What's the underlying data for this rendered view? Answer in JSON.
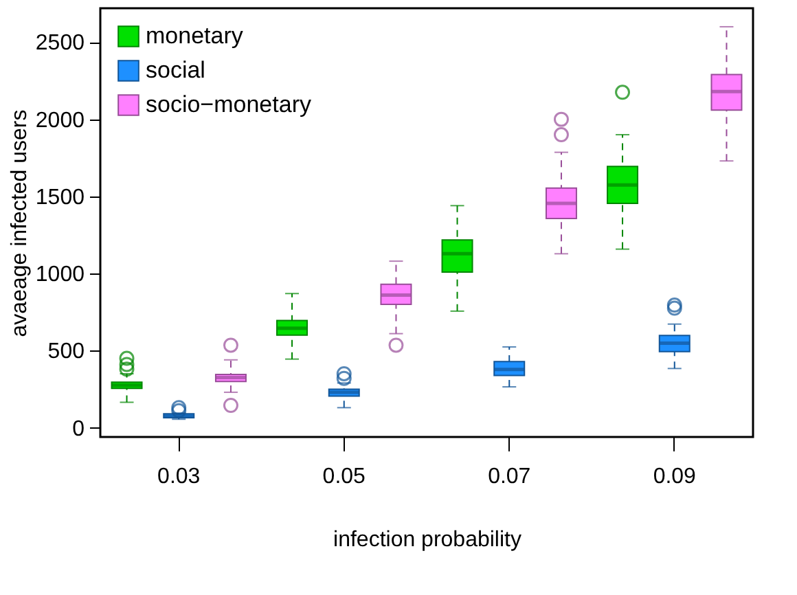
{
  "chart_data": {
    "type": "box",
    "xlabel": "infection probability",
    "ylabel": "avaeage infected users",
    "categories": [
      "0.03",
      "0.05",
      "0.07",
      "0.09"
    ],
    "ylim": [
      -60,
      2720
    ],
    "yticks": [
      0,
      500,
      1000,
      1500,
      2000,
      2500
    ],
    "grid": false,
    "legend": "top left",
    "series": [
      {
        "name": "monetary",
        "color": "#00e000",
        "boxes": [
          {
            "low": 165,
            "q1": 255,
            "median": 275,
            "q3": 295,
            "high": 350,
            "outliers": [
              380,
              410,
              450
            ]
          },
          {
            "low": 445,
            "q1": 600,
            "median": 645,
            "q3": 695,
            "high": 870
          },
          {
            "low": 756,
            "q1": 1009,
            "median": 1128,
            "q3": 1217,
            "high": 1440
          },
          {
            "low": 1158,
            "q1": 1455,
            "median": 1574,
            "q3": 1694,
            "high": 1900,
            "outliers": [
              2175
            ]
          }
        ]
      },
      {
        "name": "social",
        "color": "#1e90ff",
        "boxes": [
          {
            "low": 55,
            "q1": 65,
            "median": 75,
            "q3": 90,
            "high": 95,
            "outliers": [
              110,
              130
            ]
          },
          {
            "low": 130,
            "q1": 205,
            "median": 230,
            "q3": 250,
            "high": 290,
            "outliers": [
              320,
              350
            ]
          },
          {
            "low": 265,
            "q1": 339,
            "median": 378,
            "q3": 429,
            "high": 524
          },
          {
            "low": 384,
            "q1": 494,
            "median": 548,
            "q3": 598,
            "high": 672,
            "outliers": [
              775,
              795
            ]
          }
        ]
      },
      {
        "name": "socio−monetary",
        "color": "#ff80ff",
        "boxes": [
          {
            "low": 230,
            "q1": 300,
            "median": 325,
            "q3": 345,
            "high": 440,
            "outliers": [
              145,
              535
            ]
          },
          {
            "low": 610,
            "q1": 800,
            "median": 860,
            "q3": 930,
            "high": 1080,
            "outliers": [
              535
            ]
          },
          {
            "low": 1128,
            "q1": 1357,
            "median": 1455,
            "q3": 1554,
            "high": 1786,
            "outliers": [
              1900,
              2000
            ]
          },
          {
            "low": 1730,
            "q1": 2060,
            "median": 2180,
            "q3": 2290,
            "high": 2600
          }
        ]
      }
    ]
  }
}
